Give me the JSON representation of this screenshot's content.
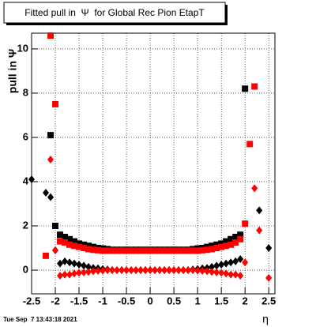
{
  "chart_data": {
    "type": "scatter",
    "title": "Fitted pull in  Ψ  for Global Rec Pion EtapT",
    "y_label": "pull in Ψ",
    "x_label": "η",
    "timestamp": "Tue Sep  7 13:43:18 2021",
    "x": [
      -2.5,
      -2.4,
      -2.3,
      -2.2,
      -2.1,
      -2.0,
      -1.9,
      -1.8,
      -1.7,
      -1.6,
      -1.5,
      -1.4,
      -1.3,
      -1.2,
      -1.1,
      -1.0,
      -0.9,
      -0.8,
      -0.7,
      -0.6,
      -0.5,
      -0.4,
      -0.3,
      -0.2,
      -0.1,
      0.0,
      0.1,
      0.2,
      0.3,
      0.4,
      0.5,
      0.6,
      0.7,
      0.8,
      0.9,
      1.0,
      1.1,
      1.2,
      1.3,
      1.4,
      1.5,
      1.6,
      1.7,
      1.8,
      1.9,
      2.0,
      2.1,
      2.2,
      2.3,
      2.4,
      2.5
    ],
    "series": [
      {
        "color": "#000000",
        "marker": "square",
        "values": [
          null,
          null,
          null,
          null,
          6.1,
          2.0,
          1.6,
          1.5,
          1.4,
          1.3,
          1.2,
          1.15,
          1.1,
          1.05,
          1.0,
          0.98,
          0.95,
          0.92,
          0.92,
          0.92,
          0.92,
          0.92,
          0.92,
          0.92,
          0.92,
          0.92,
          0.92,
          0.92,
          0.92,
          0.92,
          0.92,
          0.92,
          0.92,
          0.92,
          0.95,
          0.98,
          1.0,
          1.05,
          1.1,
          1.15,
          1.2,
          1.3,
          1.4,
          1.5,
          1.6,
          8.2,
          null,
          null,
          null,
          null,
          null
        ]
      },
      {
        "color": "#000000",
        "marker": "diamond",
        "values": [
          4.1,
          null,
          null,
          3.5,
          3.3,
          0.9,
          0.3,
          0.4,
          0.35,
          0.3,
          0.25,
          0.2,
          0.15,
          0.1,
          0.08,
          0.05,
          0.03,
          0.0,
          0.0,
          0.0,
          0.0,
          0.0,
          0.0,
          0.0,
          0.0,
          0.0,
          0.0,
          0.0,
          0.0,
          0.0,
          0.0,
          0.0,
          0.0,
          0.0,
          0.03,
          0.05,
          0.08,
          0.1,
          0.15,
          0.2,
          0.25,
          0.3,
          0.35,
          0.4,
          0.5,
          null,
          null,
          null,
          2.7,
          null,
          1.0
        ]
      },
      {
        "color": "#ff0000",
        "marker": "square",
        "values": [
          null,
          null,
          null,
          0.65,
          10.6,
          7.5,
          1.3,
          1.25,
          1.15,
          1.1,
          1.05,
          1.0,
          0.95,
          0.92,
          0.9,
          0.88,
          0.88,
          0.88,
          0.88,
          0.88,
          0.88,
          0.88,
          0.88,
          0.88,
          0.88,
          0.88,
          0.88,
          0.88,
          0.88,
          0.88,
          0.88,
          0.88,
          0.88,
          0.88,
          0.88,
          0.88,
          0.9,
          0.92,
          0.95,
          1.0,
          1.05,
          1.1,
          1.15,
          1.25,
          1.4,
          2.1,
          5.7,
          8.3,
          null,
          null,
          null
        ]
      },
      {
        "color": "#ff0000",
        "marker": "diamond",
        "values": [
          null,
          null,
          null,
          null,
          5.0,
          0.9,
          -0.25,
          -0.2,
          -0.2,
          -0.15,
          -0.12,
          -0.1,
          -0.08,
          -0.05,
          -0.03,
          -0.02,
          0.0,
          0.0,
          0.0,
          0.0,
          0.0,
          0.0,
          0.0,
          0.0,
          0.0,
          0.0,
          0.0,
          0.0,
          0.0,
          0.0,
          0.0,
          0.0,
          0.0,
          0.0,
          0.0,
          -0.02,
          -0.03,
          -0.05,
          -0.08,
          -0.1,
          -0.12,
          -0.15,
          -0.2,
          -0.2,
          -0.25,
          0.35,
          null,
          3.7,
          1.8,
          null,
          -0.35
        ]
      }
    ],
    "xlim": [
      -2.5,
      2.63
    ],
    "ylim": [
      -1.07,
      10.71
    ],
    "xticks": [
      -2.5,
      -2,
      -1.5,
      -1,
      -0.5,
      0,
      0.5,
      1,
      1.5,
      2,
      2.5
    ],
    "yticks": [
      0,
      2,
      4,
      6,
      8,
      10
    ],
    "grid": true
  }
}
